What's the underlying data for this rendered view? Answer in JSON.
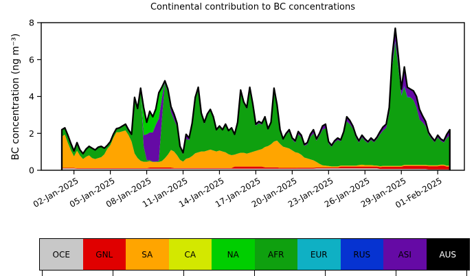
{
  "title": "Continental contribution to BC concentrations",
  "axes": {
    "ylabel": "BC concentration (ng m⁻³)",
    "ylim": [
      0,
      8
    ],
    "y_ticks": [
      0,
      2,
      4,
      6,
      8
    ],
    "xlim_days": [
      -1.7,
      33.2
    ],
    "x_ticks": [
      {
        "day": 1,
        "label": "02-Jan-2025"
      },
      {
        "day": 4,
        "label": "05-Jan-2025"
      },
      {
        "day": 7,
        "label": "08-Jan-2025"
      },
      {
        "day": 10,
        "label": "11-Jan-2025"
      },
      {
        "day": 13,
        "label": "14-Jan-2025"
      },
      {
        "day": 16,
        "label": "17-Jan-2025"
      },
      {
        "day": 19,
        "label": "20-Jan-2025"
      },
      {
        "day": 22,
        "label": "23-Jan-2025"
      },
      {
        "day": 25,
        "label": "26-Jan-2025"
      },
      {
        "day": 28,
        "label": "29-Jan-2025"
      },
      {
        "day": 31,
        "label": "01-Feb-2025"
      }
    ]
  },
  "chart_data": {
    "type": "area",
    "stacked": true,
    "title": "Continental contribution to BC concentrations",
    "ylabel": "BC concentration (ng m⁻³)",
    "x_unit": "days since 01-Jan-2025 00:00",
    "x_start": 0,
    "x_step": 0.25,
    "n_points": 129,
    "outline": {
      "color": "#000000",
      "width": 2.3
    },
    "series": [
      {
        "name": "OCE",
        "color": "#C8C8C8",
        "rle": [
          [
            5,
            0.1
          ],
          [
            79,
            0.08
          ],
          [
            21,
            0.1
          ],
          [
            16,
            0.07
          ],
          [
            8,
            0.05
          ]
        ]
      },
      {
        "name": "GNL",
        "color": "#E00000",
        "rle": [
          [
            29,
            0.03
          ],
          [
            8,
            0.07
          ],
          [
            20,
            0.04
          ],
          [
            10,
            0.12
          ],
          [
            5,
            0.08
          ],
          [
            6,
            0.05
          ],
          [
            6,
            0.06
          ],
          [
            8,
            0.05
          ],
          [
            14,
            0.1
          ],
          [
            7,
            0.12
          ],
          [
            12,
            0.17
          ],
          [
            2,
            0.2
          ],
          [
            2,
            0.15
          ]
        ]
      },
      {
        "name": "SA",
        "color": "#FFA500",
        "values": [
          1.7,
          1.8,
          1.35,
          0.95,
          0.62,
          0.95,
          0.68,
          0.5,
          0.62,
          0.7,
          0.55,
          0.5,
          0.55,
          0.6,
          0.75,
          1.05,
          1.25,
          1.65,
          1.95,
          1.95,
          2.0,
          2.05,
          1.8,
          1.45,
          0.8,
          0.55,
          0.4,
          0.35,
          0.35,
          0.35,
          0.3,
          0.3,
          0.3,
          0.35,
          0.5,
          0.7,
          0.95,
          0.9,
          0.7,
          0.45,
          0.35,
          0.5,
          0.55,
          0.65,
          0.8,
          0.85,
          0.9,
          0.9,
          0.95,
          1.0,
          0.95,
          0.9,
          0.95,
          0.9,
          0.85,
          0.75,
          0.7,
          0.65,
          0.7,
          0.75,
          0.75,
          0.7,
          0.75,
          0.8,
          0.85,
          0.9,
          0.95,
          1.1,
          1.15,
          1.25,
          1.4,
          1.45,
          1.3,
          1.15,
          1.1,
          1.05,
          0.95,
          0.85,
          0.8,
          0.7,
          0.55,
          0.5,
          0.45,
          0.4,
          0.3,
          0.2,
          0.12,
          0.1,
          0.08,
          0.06,
          0.06,
          0.06,
          0.05,
          0.05,
          0.05,
          0.05,
          0.05,
          0.05,
          0.08,
          0.1,
          0.08,
          0.08,
          0.08,
          0.06,
          0.05,
          0.05,
          0.05,
          0.05,
          0.05,
          0.05,
          0.05,
          0.05,
          0.05,
          0.05,
          0.05,
          0.05,
          0.05,
          0.05,
          0.05,
          0.05,
          0.05,
          0.05,
          0.05,
          0.05,
          0.05,
          0.05,
          0.05,
          0.05,
          0.05
        ]
      },
      {
        "name": "CA",
        "color": "#D3E800",
        "const": 0
      },
      {
        "name": "AFR",
        "color": "#0FA00F",
        "values": [
          0.37,
          0.37,
          0.42,
          0.37,
          0.3,
          0.44,
          0.31,
          0.29,
          0.42,
          0.49,
          0.54,
          0.49,
          0.59,
          0.59,
          0.34,
          0.19,
          0.19,
          0.19,
          0.19,
          0.24,
          0.29,
          0.34,
          0.29,
          0.39,
          3.04,
          2.69,
          3.94,
          0.84,
          0.09,
          0.05,
          0.02,
          0.02,
          0.05,
          2.2,
          4.1,
          3.35,
          2.05,
          1.73,
          1.53,
          0.63,
          0.4,
          1.08,
          0.96,
          1.68,
          2.91,
          3.38,
          1.98,
          1.5,
          1.9,
          2.1,
          1.78,
          1.13,
          1.28,
          1.14,
          1.49,
          1.25,
          1.45,
          1.07,
          1.65,
          3.3,
          2.67,
          2.42,
          3.43,
          2.5,
          1.37,
          1.45,
          1.32,
          1.54,
          0.89,
          1.11,
          2.64,
          1.79,
          0.72,
          0.38,
          0.69,
          0.92,
          0.59,
          0.52,
          1.01,
          0.94,
          0.63,
          0.76,
          1.21,
          1.46,
          1.15,
          1.53,
          1.93,
          2.03,
          1.22,
          1.06,
          1.29,
          1.44,
          1.32,
          1.73,
          2.4,
          2.25,
          2.0,
          1.53,
          1.22,
          1.48,
          1.32,
          1.19,
          1.37,
          1.26,
          1.45,
          1.73,
          1.91,
          2.06,
          2.86,
          5.36,
          6.71,
          5.36,
          3.81,
          4.21,
          3.66,
          3.66,
          3.51,
          3.11,
          2.46,
          2.31,
          2.11,
          1.66,
          1.43,
          1.25,
          1.51,
          1.3,
          1.2,
          1.5,
          1.65
        ]
      },
      {
        "name": "EUR",
        "color": "#0FB0C4",
        "const": 0
      },
      {
        "name": "RUS",
        "color": "#0633D1",
        "const": 0,
        "overrides": {
          "109": 0.05,
          "110": 0.05,
          "111": 0.05,
          "112": 0.05,
          "113": 0.05,
          "114": 0.05
        }
      },
      {
        "name": "ASI",
        "color": "#650AA5",
        "values": [
          0,
          0,
          0,
          0,
          0,
          0,
          0,
          0,
          0,
          0,
          0,
          0,
          0,
          0,
          0,
          0,
          0,
          0,
          0,
          0,
          0,
          0,
          0,
          0,
          0,
          0,
          0,
          0.6,
          1.4,
          1.5,
          1.58,
          2.0,
          2.3,
          1.2,
          0.1,
          0.2,
          0.3,
          0.3,
          0.2,
          0.1,
          0.08,
          0.25,
          0.12,
          0.1,
          0.12,
          0.15,
          0.1,
          0.08,
          0.08,
          0.08,
          0.05,
          0.05,
          0.05,
          0.04,
          0.04,
          0.03,
          0.03,
          0.03,
          0.05,
          0.1,
          0.08,
          0.08,
          0.12,
          0.1,
          0.08,
          0.1,
          0.08,
          0.1,
          0.05,
          0.08,
          0.25,
          0.15,
          0.05,
          0.04,
          0.08,
          0.1,
          0.08,
          0.1,
          0.15,
          0.12,
          0.08,
          0.1,
          0.15,
          0.2,
          0.1,
          0.12,
          0.2,
          0.22,
          0.1,
          0.08,
          0.1,
          0.1,
          0.08,
          0.12,
          0.25,
          0.2,
          0.15,
          0.12,
          0.1,
          0.12,
          0.1,
          0.08,
          0.1,
          0.08,
          0.1,
          0.15,
          0.2,
          0.2,
          0.3,
          0.55,
          0.7,
          0.55,
          0.3,
          1.05,
          0.5,
          0.45,
          0.5,
          0.6,
          0.55,
          0.35,
          0.25,
          0.12,
          0.1,
          0.08,
          0.12,
          0.1,
          0.1,
          0.2,
          0.3
        ]
      },
      {
        "name": "NA",
        "color": "#00CE00",
        "const": 0,
        "overrides": {
          "27": 1.5,
          "28": 0.65,
          "29": 1.15,
          "30": 0.85,
          "31": 0.85,
          "32": 1.4,
          "33": 0.6
        }
      },
      {
        "name": "AUS",
        "color": "#000000",
        "const": 0
      }
    ]
  },
  "legend": {
    "items": [
      {
        "label": "OCE",
        "color": "#C8C8C8",
        "text_color": "#000000"
      },
      {
        "label": "GNL",
        "color": "#E00000",
        "text_color": "#000000"
      },
      {
        "label": "SA",
        "color": "#FFA500",
        "text_color": "#000000"
      },
      {
        "label": "CA",
        "color": "#D3E800",
        "text_color": "#000000"
      },
      {
        "label": "NA",
        "color": "#00CE00",
        "text_color": "#000000"
      },
      {
        "label": "AFR",
        "color": "#0FA00F",
        "text_color": "#000000"
      },
      {
        "label": "EUR",
        "color": "#0FB0C4",
        "text_color": "#000000"
      },
      {
        "label": "RUS",
        "color": "#0633D1",
        "text_color": "#000000"
      },
      {
        "label": "ASI",
        "color": "#650AA5",
        "text_color": "#000000"
      },
      {
        "label": "AUS",
        "color": "#000000",
        "text_color": "#FFFFFF"
      }
    ]
  }
}
